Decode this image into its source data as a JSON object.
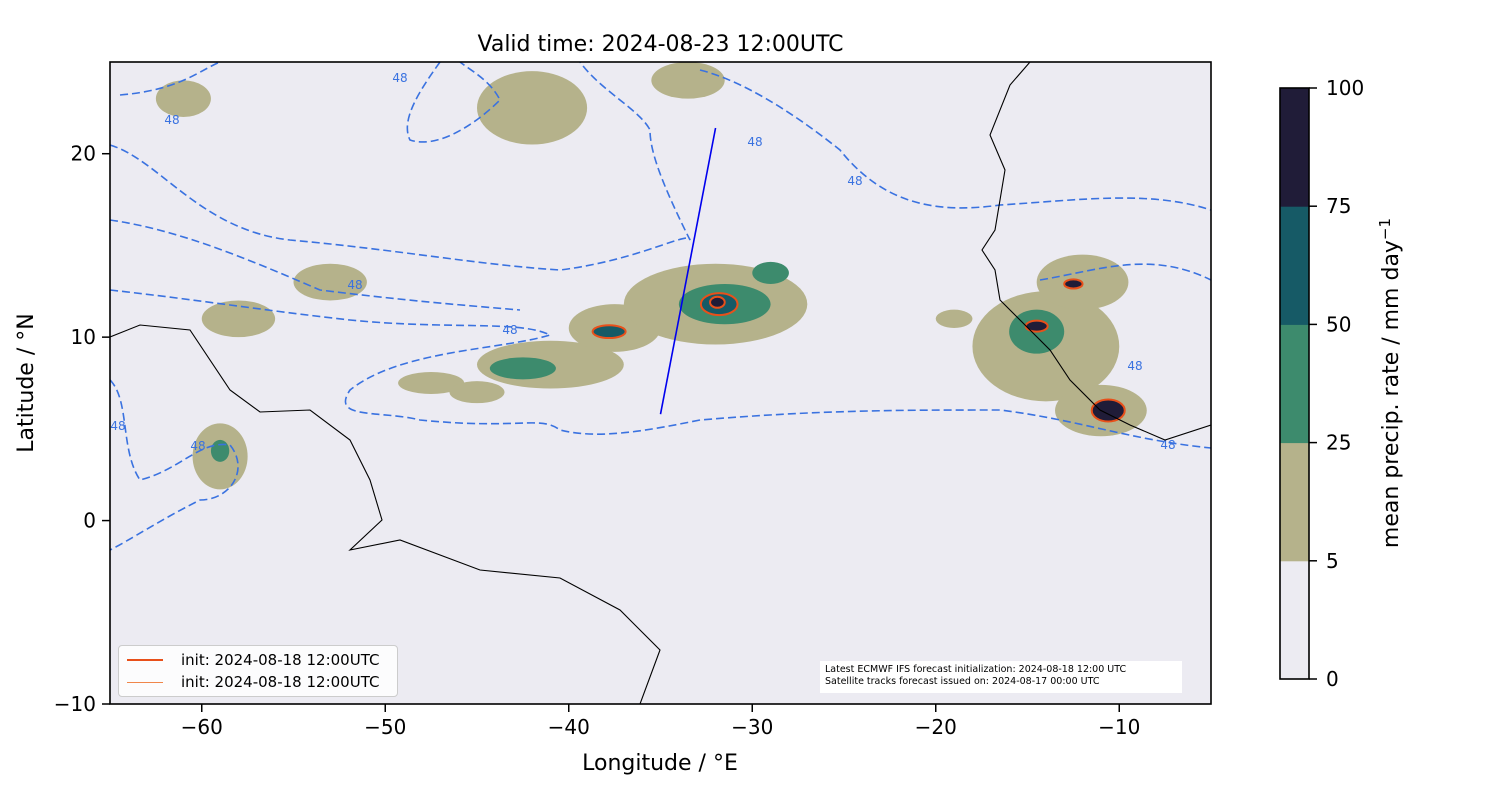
{
  "chart_data": {
    "type": "heatmap",
    "title": "Valid time: 2024-08-23 12:00UTC",
    "xlabel": "Longitude / °E",
    "ylabel": "Latitude / °N",
    "xlim": [
      -65,
      -5
    ],
    "ylim": [
      -10,
      25
    ],
    "xticks": [
      -60,
      -50,
      -40,
      -30,
      -20,
      -10
    ],
    "xtick_labels": [
      "−60",
      "−50",
      "−40",
      "−30",
      "−20",
      "−10"
    ],
    "yticks": [
      -10,
      0,
      10,
      20
    ],
    "ytick_labels": [
      "−10",
      "0",
      "10",
      "20"
    ],
    "grid": false,
    "colorbar": {
      "label": "mean precip. rate / mm day",
      "label_sup": "−1",
      "levels": [
        0,
        5,
        25,
        50,
        75,
        100
      ],
      "level_labels": [
        "0",
        "5",
        "25",
        "50",
        "75",
        "100"
      ],
      "colors": [
        "#ecebf2",
        "#b5b28b",
        "#3d8b6d",
        "#165a66",
        "#201c38"
      ]
    },
    "contour_label": "48",
    "contour_color": "#3a72e0",
    "precip_blobs": [
      {
        "lon": -41,
        "lat": 8.5,
        "rlon": 4,
        "rlat": 1.3,
        "level": 1
      },
      {
        "lon": -42.5,
        "lat": 8.3,
        "rlon": 1.8,
        "rlat": 0.6,
        "level": 2
      },
      {
        "lon": -37.5,
        "lat": 10.5,
        "rlon": 2.5,
        "rlat": 1.3,
        "level": 1
      },
      {
        "lon": -37.8,
        "lat": 10.3,
        "rlon": 0.9,
        "rlat": 0.35,
        "level": 3
      },
      {
        "lon": -32,
        "lat": 11.8,
        "rlon": 5,
        "rlat": 2.2,
        "level": 1
      },
      {
        "lon": -31.5,
        "lat": 11.8,
        "rlon": 2.5,
        "rlat": 1.1,
        "level": 2
      },
      {
        "lon": -31.8,
        "lat": 11.8,
        "rlon": 1,
        "rlat": 0.6,
        "level": 3
      },
      {
        "lon": -31.9,
        "lat": 11.9,
        "rlon": 0.4,
        "rlat": 0.3,
        "level": 4
      },
      {
        "lon": -29,
        "lat": 13.5,
        "rlon": 1,
        "rlat": 0.6,
        "level": 2
      },
      {
        "lon": -47.5,
        "lat": 7.5,
        "rlon": 1.8,
        "rlat": 0.6,
        "level": 1
      },
      {
        "lon": -59,
        "lat": 3.5,
        "rlon": 1.5,
        "rlat": 1.8,
        "level": 1
      },
      {
        "lon": -59,
        "lat": 3.8,
        "rlon": 0.5,
        "rlat": 0.6,
        "level": 2
      },
      {
        "lon": -14,
        "lat": 9.5,
        "rlon": 4,
        "rlat": 3,
        "level": 1
      },
      {
        "lon": -14.5,
        "lat": 10.3,
        "rlon": 1.5,
        "rlat": 1.2,
        "level": 2
      },
      {
        "lon": -14.5,
        "lat": 10.6,
        "rlon": 0.6,
        "rlat": 0.3,
        "level": 4
      },
      {
        "lon": -12,
        "lat": 13,
        "rlon": 2.5,
        "rlat": 1.5,
        "level": 1
      },
      {
        "lon": -12.5,
        "lat": 12.9,
        "rlon": 0.5,
        "rlat": 0.25,
        "level": 4
      },
      {
        "lon": -11,
        "lat": 6,
        "rlon": 2.5,
        "rlat": 1.4,
        "level": 1
      },
      {
        "lon": -10.6,
        "lat": 6,
        "rlon": 0.9,
        "rlat": 0.6,
        "level": 4
      },
      {
        "lon": -42,
        "lat": 22.5,
        "rlon": 3,
        "rlat": 2,
        "level": 1
      },
      {
        "lon": -33.5,
        "lat": 24,
        "rlon": 2,
        "rlat": 1,
        "level": 1
      },
      {
        "lon": -61,
        "lat": 23,
        "rlon": 1.5,
        "rlat": 1,
        "level": 1
      },
      {
        "lon": -58,
        "lat": 11,
        "rlon": 2,
        "rlat": 1,
        "level": 1
      },
      {
        "lon": -53,
        "lat": 13,
        "rlon": 2,
        "rlat": 1,
        "level": 1
      },
      {
        "lon": -45,
        "lat": 7,
        "rlon": 1.5,
        "rlat": 0.6,
        "level": 1
      },
      {
        "lon": -19,
        "lat": 11,
        "rlon": 1,
        "rlat": 0.5,
        "level": 1
      }
    ],
    "satellite_track": {
      "color": "#0000ee",
      "start": [
        -35,
        5.8
      ],
      "end": [
        -32,
        21.4
      ]
    },
    "legend": {
      "placement": "lower-left",
      "entries": [
        {
          "label": "init: 2024-08-18 12:00UTC",
          "color": "#e8501a"
        },
        {
          "label": "init: 2024-08-18 12:00UTC",
          "color": "#f0864a"
        }
      ]
    },
    "annotation": [
      "Latest ECMWF IFS forecast initialization: 2024-08-18 12:00 UTC",
      "Satellite tracks forecast issued on: 2024-08-17 00:00 UTC"
    ]
  }
}
